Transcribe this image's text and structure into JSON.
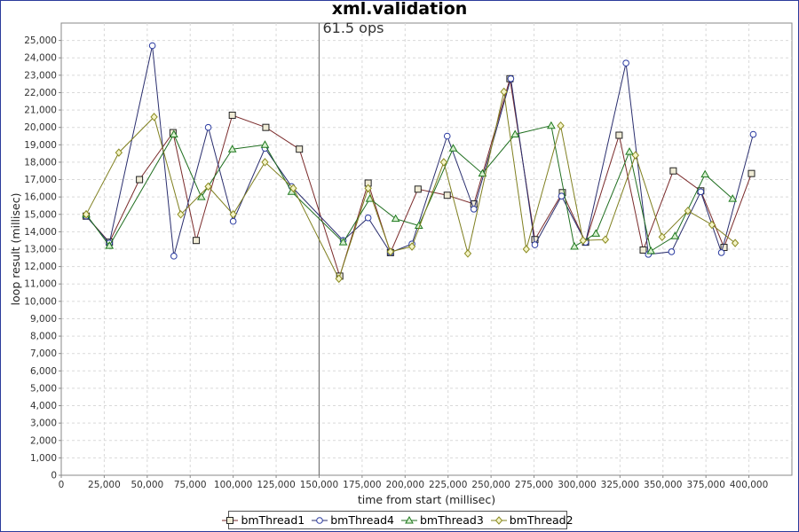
{
  "chart_data": {
    "type": "line",
    "title": "xml.validation",
    "xlabel": "time from start (millisec)",
    "ylabel": "loop result (millisec)",
    "xlim": [
      0,
      425000
    ],
    "ylim": [
      0,
      26000
    ],
    "xticks": [
      0,
      25000,
      50000,
      75000,
      100000,
      125000,
      150000,
      175000,
      200000,
      225000,
      250000,
      275000,
      300000,
      325000,
      350000,
      375000,
      400000
    ],
    "xtick_labels": [
      "0",
      "25,000",
      "50,000",
      "75,000",
      "100,000",
      "125,000",
      "150,000",
      "175,000",
      "200,000",
      "225,000",
      "250,000",
      "275,000",
      "300,000",
      "325,000",
      "350,000",
      "375,000",
      "400,000"
    ],
    "yticks": [
      0,
      1000,
      2000,
      3000,
      4000,
      5000,
      6000,
      7000,
      8000,
      9000,
      10000,
      11000,
      12000,
      13000,
      14000,
      15000,
      16000,
      17000,
      18000,
      19000,
      20000,
      21000,
      22000,
      23000,
      24000,
      25000
    ],
    "ytick_labels": [
      "0",
      "1,000",
      "2,000",
      "3,000",
      "4,000",
      "5,000",
      "6,000",
      "7,000",
      "8,000",
      "9,000",
      "10,000",
      "11,000",
      "12,000",
      "13,000",
      "14,000",
      "15,000",
      "16,000",
      "17,000",
      "18,000",
      "19,000",
      "20,000",
      "21,000",
      "22,000",
      "23,000",
      "24,000",
      "25,000"
    ],
    "grid": true,
    "marker_line": {
      "x": 150000,
      "label": "61.5 ops"
    },
    "legend_position": "bottom",
    "series": [
      {
        "name": "bmThread1",
        "color": "#7a2a2a",
        "marker": "square",
        "x": [
          14500,
          28000,
          45500,
          65000,
          78500,
          99500,
          119000,
          138500,
          162000,
          178500,
          191500,
          207500,
          224500,
          240000,
          261000,
          275500,
          291500,
          305000,
          324500,
          338500,
          356000,
          372000,
          385500,
          401500
        ],
        "y": [
          14900,
          13400,
          17000,
          19700,
          13500,
          20700,
          20000,
          18750,
          11450,
          16800,
          12800,
          16450,
          16100,
          15600,
          22800,
          13550,
          16250,
          13400,
          19550,
          12950,
          17500,
          16350,
          13100,
          17350
        ]
      },
      {
        "name": "bmThread4",
        "color": "#2a2e6e",
        "marker": "circle",
        "x": [
          14500,
          28000,
          53000,
          65500,
          85500,
          100000,
          118500,
          134000,
          164000,
          178500,
          191500,
          204000,
          224500,
          240000,
          261500,
          275500,
          291000,
          305000,
          328500,
          341500,
          355000,
          372000,
          384000,
          402500
        ],
        "y": [
          14900,
          13350,
          24700,
          12600,
          20000,
          14600,
          18800,
          16600,
          13500,
          14800,
          12800,
          13300,
          19500,
          15300,
          22800,
          13250,
          16050,
          13400,
          23700,
          12700,
          12850,
          16300,
          12800,
          19600
        ]
      },
      {
        "name": "bmThread3",
        "color": "#1f6e1f",
        "marker": "triangle",
        "x": [
          14500,
          28000,
          65500,
          81500,
          99500,
          118500,
          134000,
          164000,
          179500,
          194500,
          208000,
          228000,
          245000,
          264000,
          285000,
          298500,
          311000,
          330500,
          343000,
          357000,
          374500,
          390500
        ],
        "y": [
          15000,
          13200,
          19600,
          16000,
          18750,
          19000,
          16300,
          13400,
          15900,
          14750,
          14350,
          18800,
          17350,
          19600,
          20100,
          13150,
          13900,
          18600,
          12900,
          13750,
          17300,
          15900
        ]
      },
      {
        "name": "bmThread2",
        "color": "#7f7f1f",
        "marker": "diamond",
        "x": [
          14500,
          33500,
          54000,
          69500,
          85500,
          100000,
          118500,
          135000,
          161500,
          178500,
          191500,
          204000,
          222500,
          236500,
          257500,
          270500,
          290500,
          303500,
          316500,
          334000,
          349500,
          364500,
          378500,
          392000
        ],
        "y": [
          15000,
          18550,
          20600,
          15000,
          16600,
          15000,
          18000,
          16500,
          11300,
          16500,
          12850,
          13150,
          18000,
          12750,
          22050,
          13000,
          20100,
          13500,
          13550,
          18400,
          13700,
          15200,
          14400,
          13350
        ]
      }
    ]
  }
}
